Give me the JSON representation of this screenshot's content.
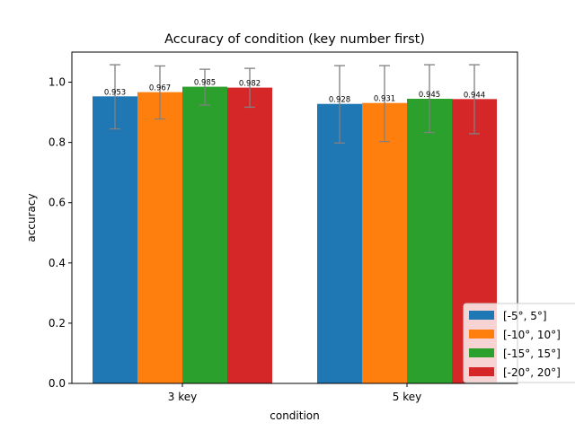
{
  "chart_data": {
    "type": "bar",
    "title": "Accuracy of condition (key number first)",
    "xlabel": "condition",
    "ylabel": "accuracy",
    "categories": [
      "3 key",
      "5 key"
    ],
    "ylim": [
      0,
      1.1
    ],
    "yticks": [
      "0.0",
      "0.2",
      "0.4",
      "0.6",
      "0.8",
      "1.0"
    ],
    "grid": false,
    "legend_position": "lower-right",
    "series": [
      {
        "name": "[-5°, 5°]",
        "color": "#1f77b4",
        "values": [
          0.953,
          0.928
        ],
        "labels": [
          "0.953",
          "0.928"
        ],
        "err_low": [
          0.845,
          0.798
        ],
        "err_high": [
          1.058,
          1.055
        ]
      },
      {
        "name": "[-10°, 10°]",
        "color": "#ff7f0e",
        "values": [
          0.967,
          0.931
        ],
        "labels": [
          "0.967",
          "0.931"
        ],
        "err_low": [
          0.878,
          0.803
        ],
        "err_high": [
          1.054,
          1.055
        ]
      },
      {
        "name": "[-15°, 15°]",
        "color": "#2ca02c",
        "values": [
          0.985,
          0.945
        ],
        "labels": [
          "0.985",
          "0.945"
        ],
        "err_low": [
          0.924,
          0.833
        ],
        "err_high": [
          1.043,
          1.058
        ]
      },
      {
        "name": "[-20°, 20°]",
        "color": "#d62728",
        "values": [
          0.982,
          0.944
        ],
        "labels": [
          "0.982",
          "0.944"
        ],
        "err_low": [
          0.917,
          0.829
        ],
        "err_high": [
          1.046,
          1.058
        ]
      }
    ],
    "error_bar_color": "#808080"
  }
}
